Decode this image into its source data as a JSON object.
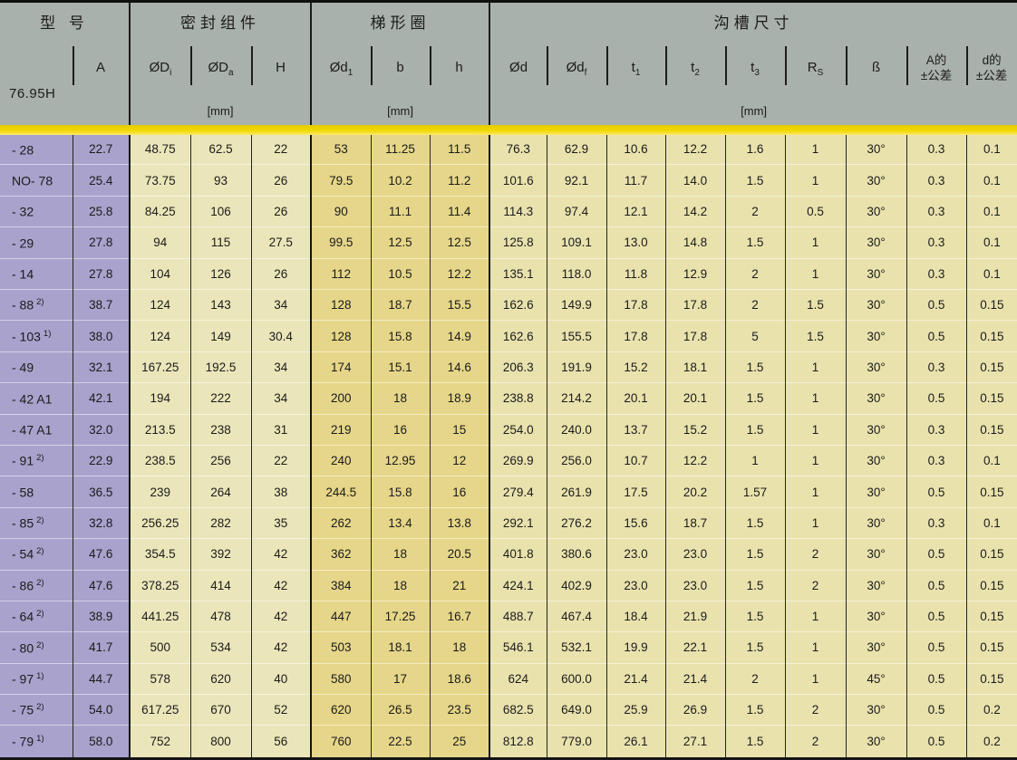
{
  "colors": {
    "header_bg": "#a9b1ac",
    "model_col_bg": "#a8a2cc",
    "seal_col_bg": "#ebe6ba",
    "trapezoid_col_bg": "#e6d689",
    "groove_col_bg": "#e9e2ad",
    "divider_band": "#f2d800",
    "grid_line": "#1c1c1c"
  },
  "table": {
    "groups": [
      {
        "title": "型 号"
      },
      {
        "title": "密封组件"
      },
      {
        "title": "梯形圈"
      },
      {
        "title": "沟槽尺寸"
      }
    ],
    "model_series": "76.95H",
    "unit": "[mm]",
    "columns": [
      {
        "label": "A"
      },
      {
        "label": "ØD",
        "sub": "i"
      },
      {
        "label": "ØD",
        "sub": "a"
      },
      {
        "label": "H"
      },
      {
        "label": "Ød",
        "sub": "1"
      },
      {
        "label": "b"
      },
      {
        "label": "h"
      },
      {
        "label": "Ød"
      },
      {
        "label": "Ød",
        "sub": "f"
      },
      {
        "label": "t",
        "sub": "1"
      },
      {
        "label": "t",
        "sub": "2"
      },
      {
        "label": "t",
        "sub": "3"
      },
      {
        "label": "R",
        "sub": "S"
      },
      {
        "label": "ß"
      },
      {
        "label": "A的",
        "line2": "±公差"
      },
      {
        "label": "d的",
        "line2": "±公差"
      }
    ],
    "rows": [
      {
        "model": "- 28",
        "sup": "",
        "values": [
          "22.7",
          "48.75",
          "62.5",
          "22",
          "53",
          "11.25",
          "11.5",
          "76.3",
          "62.9",
          "10.6",
          "12.2",
          "1.6",
          "1",
          "30°",
          "0.3",
          "0.1"
        ]
      },
      {
        "model": "NO- 78",
        "sup": "",
        "values": [
          "25.4",
          "73.75",
          "93",
          "26",
          "79.5",
          "10.2",
          "11.2",
          "101.6",
          "92.1",
          "11.7",
          "14.0",
          "1.5",
          "1",
          "30°",
          "0.3",
          "0.1"
        ]
      },
      {
        "model": "- 32",
        "sup": "",
        "values": [
          "25.8",
          "84.25",
          "106",
          "26",
          "90",
          "11.1",
          "11.4",
          "114.3",
          "97.4",
          "12.1",
          "14.2",
          "2",
          "0.5",
          "30°",
          "0.3",
          "0.1"
        ]
      },
      {
        "model": "- 29",
        "sup": "",
        "values": [
          "27.8",
          "94",
          "115",
          "27.5",
          "99.5",
          "12.5",
          "12.5",
          "125.8",
          "109.1",
          "13.0",
          "14.8",
          "1.5",
          "1",
          "30°",
          "0.3",
          "0.1"
        ]
      },
      {
        "model": "- 14",
        "sup": "",
        "values": [
          "27.8",
          "104",
          "126",
          "26",
          "112",
          "10.5",
          "12.2",
          "135.1",
          "118.0",
          "11.8",
          "12.9",
          "2",
          "1",
          "30°",
          "0.3",
          "0.1"
        ]
      },
      {
        "model": "- 88",
        "sup": "2)",
        "values": [
          "38.7",
          "124",
          "143",
          "34",
          "128",
          "18.7",
          "15.5",
          "162.6",
          "149.9",
          "17.8",
          "17.8",
          "2",
          "1.5",
          "30°",
          "0.5",
          "0.15"
        ]
      },
      {
        "model": "- 103",
        "sup": "1)",
        "values": [
          "38.0",
          "124",
          "149",
          "30.4",
          "128",
          "15.8",
          "14.9",
          "162.6",
          "155.5",
          "17.8",
          "17.8",
          "5",
          "1.5",
          "30°",
          "0.5",
          "0.15"
        ]
      },
      {
        "model": "- 49",
        "sup": "",
        "values": [
          "32.1",
          "167.25",
          "192.5",
          "34",
          "174",
          "15.1",
          "14.6",
          "206.3",
          "191.9",
          "15.2",
          "18.1",
          "1.5",
          "1",
          "30°",
          "0.3",
          "0.15"
        ]
      },
      {
        "model": "- 42 A1",
        "sup": "",
        "values": [
          "42.1",
          "194",
          "222",
          "34",
          "200",
          "18",
          "18.9",
          "238.8",
          "214.2",
          "20.1",
          "20.1",
          "1.5",
          "1",
          "30°",
          "0.5",
          "0.15"
        ]
      },
      {
        "model": "- 47 A1",
        "sup": "",
        "values": [
          "32.0",
          "213.5",
          "238",
          "31",
          "219",
          "16",
          "15",
          "254.0",
          "240.0",
          "13.7",
          "15.2",
          "1.5",
          "1",
          "30°",
          "0.3",
          "0.15"
        ]
      },
      {
        "model": "- 91",
        "sup": "2)",
        "values": [
          "22.9",
          "238.5",
          "256",
          "22",
          "240",
          "12.95",
          "12",
          "269.9",
          "256.0",
          "10.7",
          "12.2",
          "1",
          "1",
          "30°",
          "0.3",
          "0.1"
        ]
      },
      {
        "model": "- 58",
        "sup": "",
        "values": [
          "36.5",
          "239",
          "264",
          "38",
          "244.5",
          "15.8",
          "16",
          "279.4",
          "261.9",
          "17.5",
          "20.2",
          "1.57",
          "1",
          "30°",
          "0.5",
          "0.15"
        ]
      },
      {
        "model": "- 85",
        "sup": "2)",
        "values": [
          "32.8",
          "256.25",
          "282",
          "35",
          "262",
          "13.4",
          "13.8",
          "292.1",
          "276.2",
          "15.6",
          "18.7",
          "1.5",
          "1",
          "30°",
          "0.3",
          "0.1"
        ]
      },
      {
        "model": "- 54",
        "sup": "2)",
        "values": [
          "47.6",
          "354.5",
          "392",
          "42",
          "362",
          "18",
          "20.5",
          "401.8",
          "380.6",
          "23.0",
          "23.0",
          "1.5",
          "2",
          "30°",
          "0.5",
          "0.15"
        ]
      },
      {
        "model": "- 86",
        "sup": "2)",
        "values": [
          "47.6",
          "378.25",
          "414",
          "42",
          "384",
          "18",
          "21",
          "424.1",
          "402.9",
          "23.0",
          "23.0",
          "1.5",
          "2",
          "30°",
          "0.5",
          "0.15"
        ]
      },
      {
        "model": "- 64",
        "sup": "2)",
        "values": [
          "38.9",
          "441.25",
          "478",
          "42",
          "447",
          "17.25",
          "16.7",
          "488.7",
          "467.4",
          "18.4",
          "21.9",
          "1.5",
          "1",
          "30°",
          "0.5",
          "0.15"
        ]
      },
      {
        "model": "- 80",
        "sup": "2)",
        "values": [
          "41.7",
          "500",
          "534",
          "42",
          "503",
          "18.1",
          "18",
          "546.1",
          "532.1",
          "19.9",
          "22.1",
          "1.5",
          "1",
          "30°",
          "0.5",
          "0.15"
        ]
      },
      {
        "model": "- 97",
        "sup": "1)",
        "values": [
          "44.7",
          "578",
          "620",
          "40",
          "580",
          "17",
          "18.6",
          "624",
          "600.0",
          "21.4",
          "21.4",
          "2",
          "1",
          "45°",
          "0.5",
          "0.15"
        ]
      },
      {
        "model": "- 75",
        "sup": "2)",
        "values": [
          "54.0",
          "617.25",
          "670",
          "52",
          "620",
          "26.5",
          "23.5",
          "682.5",
          "649.0",
          "25.9",
          "26.9",
          "1.5",
          "2",
          "30°",
          "0.5",
          "0.2"
        ]
      },
      {
        "model": "- 79",
        "sup": "1)",
        "values": [
          "58.0",
          "752",
          "800",
          "56",
          "760",
          "22.5",
          "25",
          "812.8",
          "779.0",
          "26.1",
          "27.1",
          "1.5",
          "2",
          "30°",
          "0.5",
          "0.2"
        ]
      }
    ]
  }
}
